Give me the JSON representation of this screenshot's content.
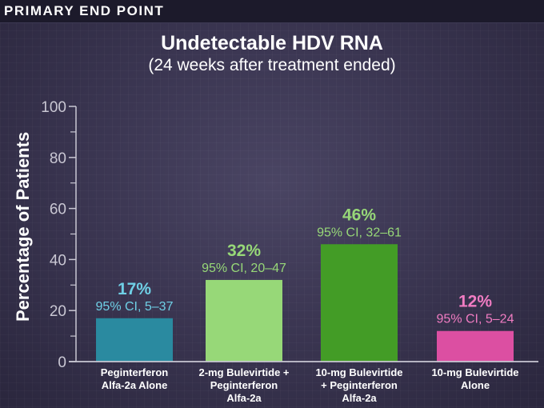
{
  "header": {
    "label": "PRIMARY END POINT"
  },
  "chart_data": {
    "type": "bar",
    "title": "Undetectable HDV RNA",
    "subtitle": "(24 weeks after treatment ended)",
    "xlabel": "",
    "ylabel": "Percentage of Patients",
    "ylim": [
      0,
      100
    ],
    "yticks": [
      0,
      20,
      40,
      60,
      80,
      100
    ],
    "minor_ticks": [
      10,
      30,
      50,
      70,
      90
    ],
    "grid": false,
    "categories": [
      [
        "Peginterferon",
        "Alfa-2a Alone"
      ],
      [
        "2-mg Bulevirtide +",
        "Peginterferon",
        "Alfa-2a"
      ],
      [
        "10-mg Bulevirtide",
        "+ Peginterferon",
        "Alfa-2a"
      ],
      [
        "10-mg Bulevirtide",
        "Alone"
      ]
    ],
    "values": [
      17,
      32,
      46,
      12
    ],
    "value_labels": [
      "17%",
      "32%",
      "46%",
      "12%"
    ],
    "ci_labels": [
      "95% CI, 5–37",
      "95% CI, 20–47",
      "95% CI, 32–61",
      "95% CI, 5–24"
    ],
    "ci": [
      [
        5,
        37
      ],
      [
        20,
        47
      ],
      [
        32,
        61
      ],
      [
        5,
        24
      ]
    ],
    "colors": [
      "#2a8aa0",
      "#97d878",
      "#439c26",
      "#dc4fa2"
    ],
    "label_colors": [
      "#6fd0e6",
      "#97d878",
      "#97d878",
      "#f07cc2"
    ]
  }
}
